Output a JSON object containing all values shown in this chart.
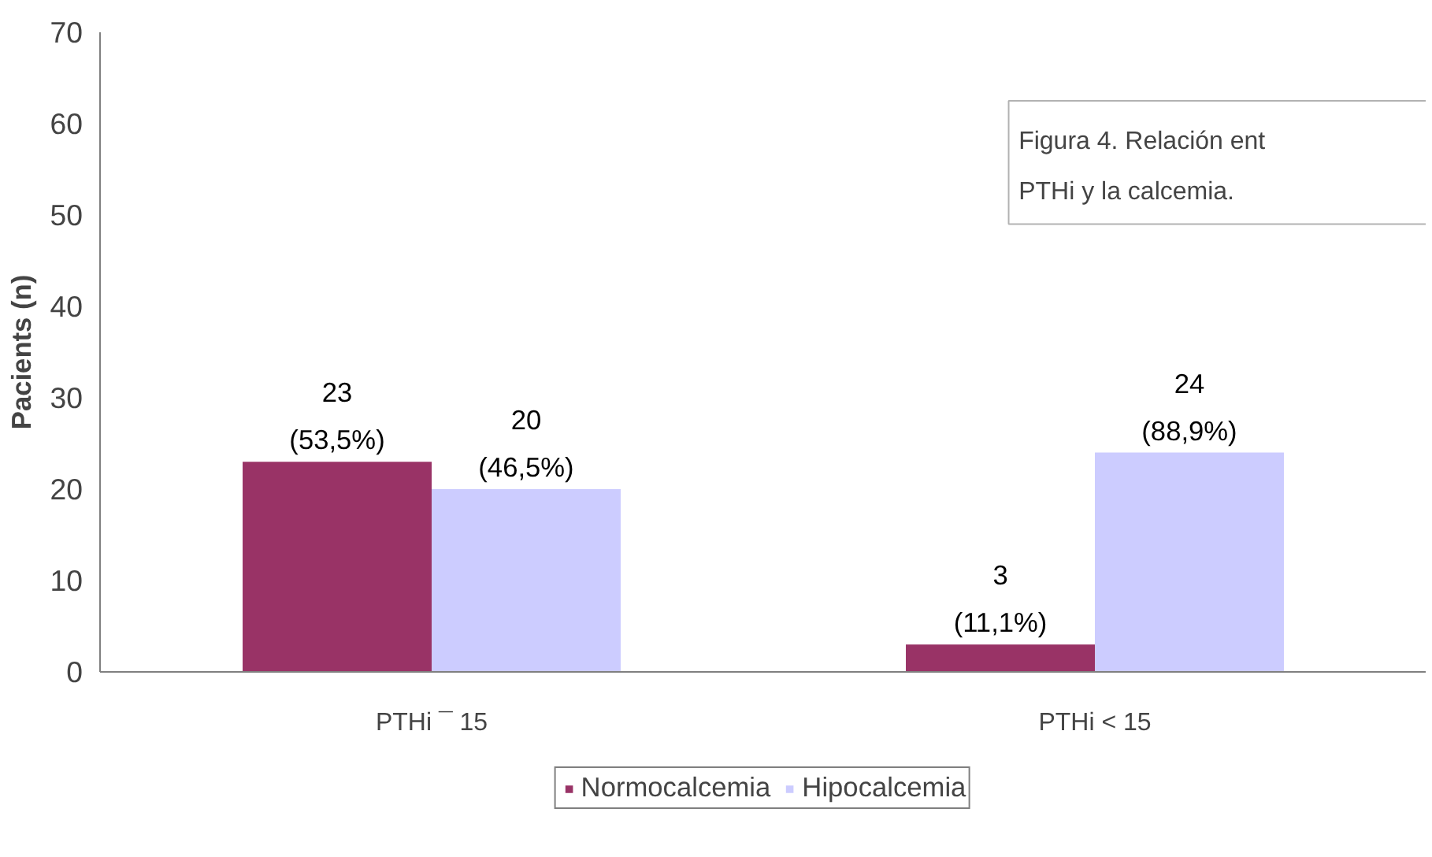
{
  "chart_data": {
    "type": "bar",
    "ylabel": "Pacients (n)",
    "categories": [
      "PTHi ¯ 15",
      "PTHi < 15"
    ],
    "series": [
      {
        "name": "Normocalcemia",
        "color": "#993366",
        "values": [
          23,
          3
        ],
        "value_labels": [
          "23\n(53,5%)",
          "3\n(11,1%)"
        ]
      },
      {
        "name": "Hipocalcemia",
        "color": "#ccccff",
        "values": [
          20,
          24
        ],
        "value_labels": [
          "20\n(46,5%)",
          "24\n(88,9%)"
        ]
      }
    ],
    "ylim": [
      0,
      70
    ],
    "yticks": [
      0,
      10,
      20,
      30,
      40,
      50,
      60,
      70
    ],
    "grid": false,
    "legend": "bottom",
    "annotations": [
      "Figura 4. Relación ent",
      "PTHi y la calcemia."
    ]
  }
}
